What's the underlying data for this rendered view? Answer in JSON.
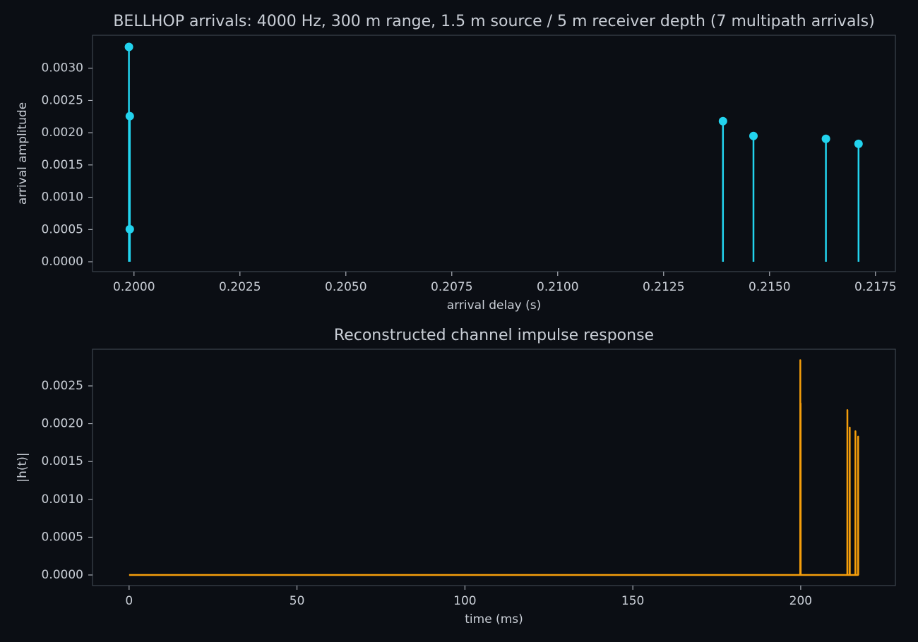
{
  "chart_data": [
    {
      "type": "stem",
      "title": "BELLHOP arrivals: 4000 Hz, 300 m range, 1.5 m source / 5 m receiver depth (7 multipath arrivals)",
      "xlabel": "arrival delay (s)",
      "ylabel": "arrival amplitude",
      "x": [
        0.19988,
        0.1999,
        0.1999,
        0.2139,
        0.21462,
        0.21633,
        0.2171
      ],
      "values": [
        0.003329,
        0.002256,
        0.000504,
        0.002179,
        0.001949,
        0.001905,
        0.001828
      ],
      "color": "#22d3ee",
      "xlim": [
        0.19902,
        0.21797
      ],
      "xticks": [
        {
          "value": 0.2,
          "label": "0.2000"
        },
        0.2025,
        {
          "value": 0.205,
          "label": "0.2050"
        },
        0.2075,
        {
          "value": 0.21,
          "label": "0.2100"
        },
        0.2125,
        {
          "value": 0.215,
          "label": "0.2150"
        },
        0.2175
      ],
      "ylim": [
        -0.000153,
        0.00351
      ],
      "yticks": [
        {
          "value": 0,
          "label": "0.0000"
        },
        0.0005,
        {
          "value": 0.001,
          "label": "0.0010"
        },
        0.0015,
        {
          "value": 0.002,
          "label": "0.0020"
        },
        0.0025,
        {
          "value": 0.003,
          "label": "0.0030"
        }
      ],
      "grid": false
    },
    {
      "type": "line",
      "title": "Reconstructed channel impulse response",
      "xlabel": "time (ms)",
      "ylabel": "|h(t)|",
      "x": [
        0,
        199.85,
        199.88,
        199.9,
        199.95,
        199.97,
        200.0,
        213.88,
        213.9,
        213.93,
        214.58,
        214.6,
        214.63,
        216.28,
        216.3,
        216.33,
        217.08,
        217.1,
        217.13
      ],
      "values": [
        0,
        0,
        0.00284,
        0,
        0,
        0.00227,
        0,
        0,
        0.00218,
        0,
        0,
        0.00195,
        0,
        0,
        0.0019,
        0,
        0,
        0.00183,
        0
      ],
      "color": "#f59e0b",
      "xlim": [
        -10.9,
        228.2
      ],
      "xticks": [
        0,
        50,
        100,
        150,
        200
      ],
      "ylim": [
        -0.00014,
        0.002985
      ],
      "yticks": [
        {
          "value": 0,
          "label": "0.0000"
        },
        0.0005,
        {
          "value": 0.001,
          "label": "0.0010"
        },
        0.0015,
        {
          "value": 0.002,
          "label": "0.0020"
        },
        0.0025
      ],
      "grid": false
    }
  ]
}
